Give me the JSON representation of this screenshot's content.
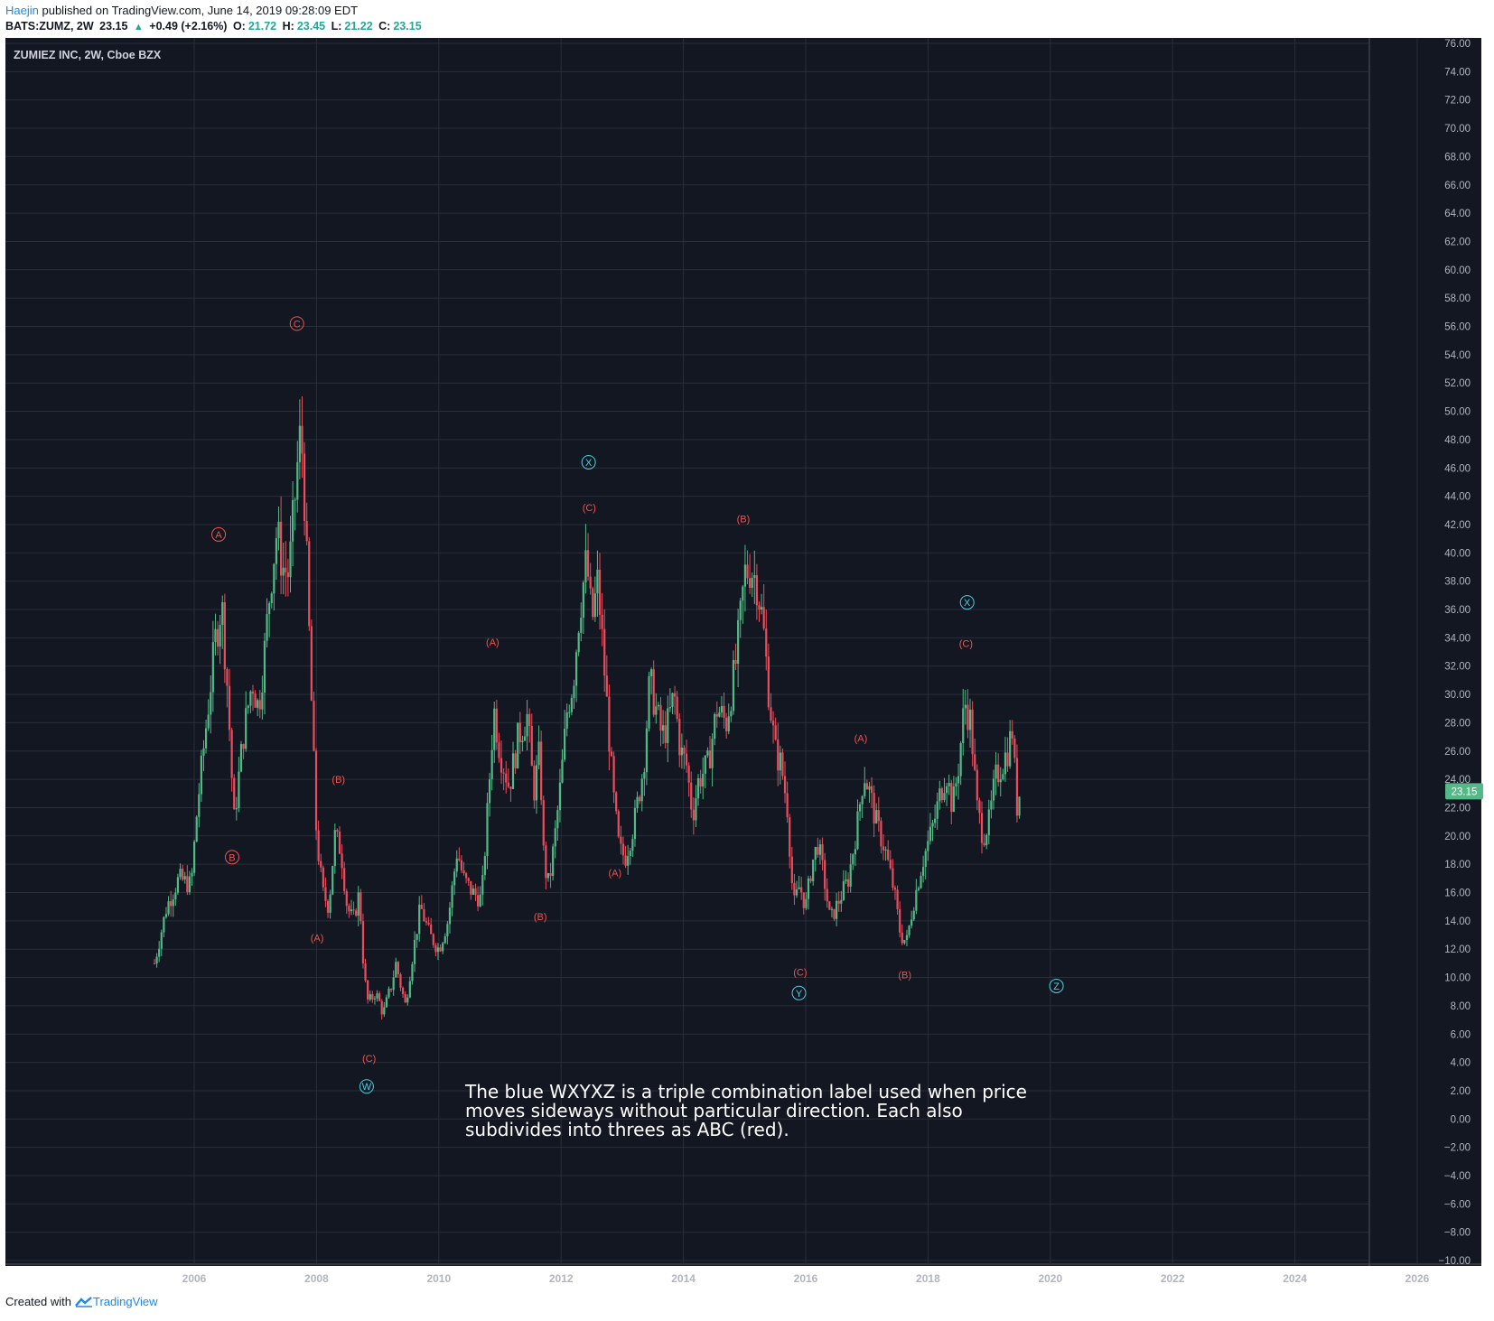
{
  "header": {
    "author": "Haejin",
    "published_text": "published on TradingView.com, June 14, 2019 09:28:09 EDT",
    "symbol": "BATS:ZUMZ, 2W",
    "last": "23.15",
    "change": "+0.49 (+2.16%)",
    "o_label": "O:",
    "o_value": "21.72",
    "h_label": "H:",
    "h_value": "23.45",
    "l_label": "L:",
    "l_value": "21.22",
    "c_label": "C:",
    "c_value": "23.15"
  },
  "footer": {
    "created_with": "Created with",
    "brand": "TradingView"
  },
  "colors": {
    "background": "#131722",
    "grid": "#2a2e39",
    "up": "#53b987",
    "down": "#eb4d5c",
    "wave_red": "#ef5350",
    "wave_blue": "#4dd0e1",
    "last_price_bg": "#53b987"
  },
  "chart_data": {
    "type": "candlestick",
    "title": "ZUMIEZ INC, 2W, Cboe BZX",
    "last_price_label": "23.15",
    "ylim": [
      -10,
      76
    ],
    "yticks": [
      "76.00",
      "74.00",
      "72.00",
      "70.00",
      "68.00",
      "66.00",
      "64.00",
      "62.00",
      "60.00",
      "58.00",
      "56.00",
      "54.00",
      "52.00",
      "50.00",
      "48.00",
      "46.00",
      "44.00",
      "42.00",
      "40.00",
      "38.00",
      "36.00",
      "34.00",
      "32.00",
      "30.00",
      "28.00",
      "26.00",
      "24.00",
      "22.00",
      "20.00",
      "18.00",
      "16.00",
      "14.00",
      "12.00",
      "10.00",
      "8.00",
      "6.00",
      "4.00",
      "2.00",
      "0.00",
      "−2.00",
      "−4.00",
      "−6.00",
      "−8.00",
      "−10.00"
    ],
    "xlim": [
      2003.0,
      2027.0
    ],
    "xticks": [
      {
        "label": "2006",
        "year": 2006
      },
      {
        "label": "2008",
        "year": 2008
      },
      {
        "label": "2010",
        "year": 2010
      },
      {
        "label": "2012",
        "year": 2012
      },
      {
        "label": "2014",
        "year": 2014
      },
      {
        "label": "2016",
        "year": 2016
      },
      {
        "label": "2018",
        "year": 2018
      },
      {
        "label": "2020",
        "year": 2020
      },
      {
        "label": "2022",
        "year": 2022
      },
      {
        "label": "2024",
        "year": 2024
      },
      {
        "label": "2026",
        "year": 2026
      }
    ],
    "price_path": [
      [
        2005.35,
        11.0
      ],
      [
        2005.55,
        15.0
      ],
      [
        2005.75,
        17.0
      ],
      [
        2005.95,
        16.5
      ],
      [
        2006.05,
        22.0
      ],
      [
        2006.2,
        28.0
      ],
      [
        2006.35,
        34.0
      ],
      [
        2006.45,
        36.5
      ],
      [
        2006.55,
        30.0
      ],
      [
        2006.65,
        21.0
      ],
      [
        2006.8,
        27.0
      ],
      [
        2006.95,
        31.0
      ],
      [
        2007.05,
        29.0
      ],
      [
        2007.15,
        33.0
      ],
      [
        2007.25,
        38.0
      ],
      [
        2007.35,
        41.5
      ],
      [
        2007.45,
        39.0
      ],
      [
        2007.55,
        38.5
      ],
      [
        2007.65,
        44.0
      ],
      [
        2007.72,
        48.0
      ],
      [
        2007.78,
        47.0
      ],
      [
        2007.85,
        38.0
      ],
      [
        2007.93,
        28.0
      ],
      [
        2008.0,
        20.0
      ],
      [
        2008.1,
        16.0
      ],
      [
        2008.2,
        15.0
      ],
      [
        2008.3,
        20.0
      ],
      [
        2008.4,
        19.0
      ],
      [
        2008.5,
        15.0
      ],
      [
        2008.6,
        14.0
      ],
      [
        2008.7,
        16.0
      ],
      [
        2008.78,
        10.0
      ],
      [
        2008.85,
        8.0
      ],
      [
        2008.95,
        9.0
      ],
      [
        2009.1,
        7.5
      ],
      [
        2009.2,
        9.0
      ],
      [
        2009.3,
        11.0
      ],
      [
        2009.45,
        8.0
      ],
      [
        2009.55,
        11.0
      ],
      [
        2009.7,
        15.0
      ],
      [
        2009.85,
        13.0
      ],
      [
        2010.0,
        12.0
      ],
      [
        2010.15,
        14.0
      ],
      [
        2010.3,
        19.0
      ],
      [
        2010.4,
        17.0
      ],
      [
        2010.55,
        16.0
      ],
      [
        2010.7,
        15.5
      ],
      [
        2010.8,
        22.0
      ],
      [
        2010.9,
        29.0
      ],
      [
        2011.0,
        26.0
      ],
      [
        2011.15,
        23.5
      ],
      [
        2011.3,
        27.0
      ],
      [
        2011.45,
        28.5
      ],
      [
        2011.55,
        23.0
      ],
      [
        2011.65,
        26.0
      ],
      [
        2011.72,
        18.0
      ],
      [
        2011.8,
        16.5
      ],
      [
        2011.9,
        20.0
      ],
      [
        2012.0,
        24.0
      ],
      [
        2012.1,
        29.0
      ],
      [
        2012.2,
        31.0
      ],
      [
        2012.3,
        36.0
      ],
      [
        2012.42,
        39.5
      ],
      [
        2012.5,
        35.0
      ],
      [
        2012.6,
        38.0
      ],
      [
        2012.72,
        31.0
      ],
      [
        2012.85,
        23.0
      ],
      [
        2012.95,
        19.0
      ],
      [
        2013.05,
        18.5
      ],
      [
        2013.2,
        21.0
      ],
      [
        2013.35,
        25.0
      ],
      [
        2013.45,
        31.0
      ],
      [
        2013.55,
        29.0
      ],
      [
        2013.65,
        27.0
      ],
      [
        2013.75,
        28.0
      ],
      [
        2013.85,
        30.0
      ],
      [
        2013.95,
        26.0
      ],
      [
        2014.05,
        25.0
      ],
      [
        2014.15,
        21.5
      ],
      [
        2014.25,
        24.0
      ],
      [
        2014.4,
        25.0
      ],
      [
        2014.55,
        29.0
      ],
      [
        2014.7,
        28.0
      ],
      [
        2014.85,
        32.0
      ],
      [
        2014.95,
        36.0
      ],
      [
        2015.0,
        38.5
      ],
      [
        2015.1,
        39.0
      ],
      [
        2015.2,
        38.0
      ],
      [
        2015.3,
        35.0
      ],
      [
        2015.4,
        30.0
      ],
      [
        2015.5,
        26.0
      ],
      [
        2015.6,
        25.0
      ],
      [
        2015.7,
        22.0
      ],
      [
        2015.8,
        15.0
      ],
      [
        2015.9,
        16.5
      ],
      [
        2016.0,
        15.0
      ],
      [
        2016.1,
        18.0
      ],
      [
        2016.2,
        19.5
      ],
      [
        2016.3,
        17.0
      ],
      [
        2016.4,
        14.0
      ],
      [
        2016.55,
        15.5
      ],
      [
        2016.7,
        17.0
      ],
      [
        2016.85,
        21.0
      ],
      [
        2016.95,
        24.5
      ],
      [
        2017.05,
        23.0
      ],
      [
        2017.15,
        21.0
      ],
      [
        2017.3,
        19.0
      ],
      [
        2017.45,
        16.0
      ],
      [
        2017.55,
        13.0
      ],
      [
        2017.65,
        12.5
      ],
      [
        2017.75,
        15.0
      ],
      [
        2017.9,
        18.0
      ],
      [
        2018.0,
        19.5
      ],
      [
        2018.1,
        21.0
      ],
      [
        2018.2,
        23.0
      ],
      [
        2018.3,
        24.5
      ],
      [
        2018.4,
        22.0
      ],
      [
        2018.5,
        25.0
      ],
      [
        2018.6,
        29.5
      ],
      [
        2018.7,
        28.0
      ],
      [
        2018.8,
        22.0
      ],
      [
        2018.9,
        20.0
      ],
      [
        2019.0,
        21.0
      ],
      [
        2019.1,
        24.0
      ],
      [
        2019.2,
        25.0
      ],
      [
        2019.3,
        26.0
      ],
      [
        2019.38,
        27.5
      ],
      [
        2019.45,
        22.0
      ],
      [
        2019.5,
        23.15
      ]
    ],
    "annotations": [
      {
        "text": "A",
        "style": "circle",
        "color": "red",
        "x": 2006.4,
        "y": 41.3
      },
      {
        "text": "B",
        "style": "circle",
        "color": "red",
        "x": 2006.62,
        "y": 18.5
      },
      {
        "text": "C",
        "style": "circle",
        "color": "red",
        "x": 2007.68,
        "y": 56.2
      },
      {
        "text": "(A)",
        "style": "paren",
        "color": "red",
        "x": 2008.01,
        "y": 12.8
      },
      {
        "text": "(B)",
        "style": "paren",
        "color": "red",
        "x": 2008.36,
        "y": 24.0
      },
      {
        "text": "(C)",
        "style": "paren",
        "color": "red",
        "x": 2008.86,
        "y": 4.3
      },
      {
        "text": "W",
        "style": "circle",
        "color": "blue",
        "x": 2008.82,
        "y": 2.3
      },
      {
        "text": "(A)",
        "style": "paren",
        "color": "red",
        "x": 2010.88,
        "y": 33.7
      },
      {
        "text": "(B)",
        "style": "paren",
        "color": "red",
        "x": 2011.66,
        "y": 14.3
      },
      {
        "text": "X",
        "style": "circle",
        "color": "blue",
        "x": 2012.45,
        "y": 46.4
      },
      {
        "text": "(C)",
        "style": "paren",
        "color": "red",
        "x": 2012.46,
        "y": 43.2
      },
      {
        "text": "(A)",
        "style": "paren",
        "color": "red",
        "x": 2012.88,
        "y": 17.4
      },
      {
        "text": "(B)",
        "style": "paren",
        "color": "red",
        "x": 2014.98,
        "y": 42.4
      },
      {
        "text": "(C)",
        "style": "paren",
        "color": "red",
        "x": 2015.91,
        "y": 10.4
      },
      {
        "text": "Y",
        "style": "circle",
        "color": "blue",
        "x": 2015.89,
        "y": 8.9
      },
      {
        "text": "(A)",
        "style": "paren",
        "color": "red",
        "x": 2016.9,
        "y": 26.9
      },
      {
        "text": "(B)",
        "style": "paren",
        "color": "red",
        "x": 2017.62,
        "y": 10.2
      },
      {
        "text": "X",
        "style": "circle",
        "color": "blue",
        "x": 2018.64,
        "y": 36.5
      },
      {
        "text": "(C)",
        "style": "paren",
        "color": "red",
        "x": 2018.62,
        "y": 33.6
      },
      {
        "text": "Z",
        "style": "circle",
        "color": "blue",
        "x": 2020.1,
        "y": 9.4
      }
    ],
    "note_lines": [
      "The blue WXYXZ is a triple combination label used when price",
      "moves sideways without particular direction. Each also",
      "subdivides into threes as ABC (red)."
    ]
  }
}
